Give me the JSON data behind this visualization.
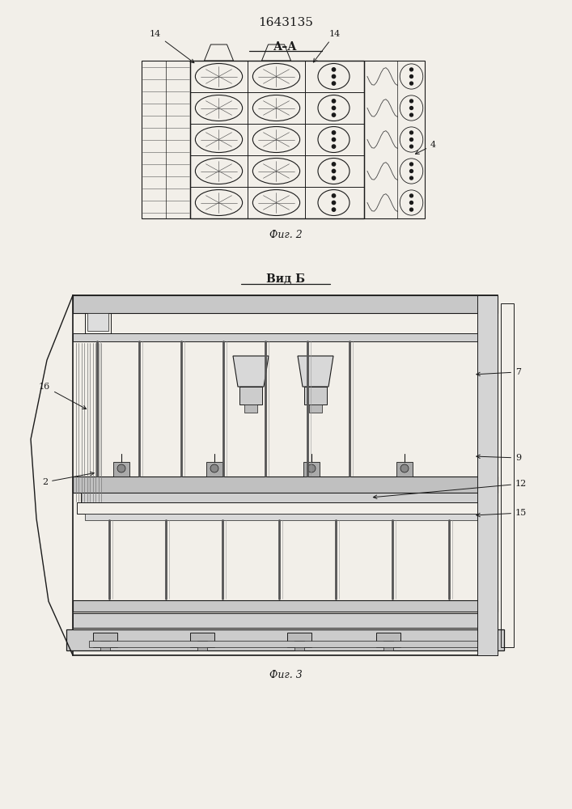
{
  "bg_color": "#f2efe9",
  "line_color": "#1a1a1a",
  "title": "1643135",
  "fig2_label": "А–А",
  "fig2_caption": "Фиг. 2",
  "fig3_label": "Вид Б",
  "fig3_caption": "Фиг. 3"
}
